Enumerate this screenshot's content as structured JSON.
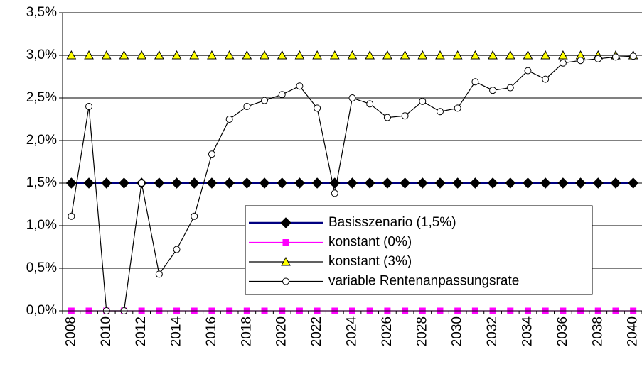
{
  "chart_data": {
    "type": "line",
    "categories": [
      "2008",
      null,
      "2010",
      null,
      "2012",
      null,
      "2014",
      null,
      "2016",
      null,
      "2018",
      null,
      "2020",
      null,
      "2022",
      null,
      "2024",
      null,
      "2026",
      null,
      "2028",
      null,
      "2030",
      null,
      "2032",
      null,
      "2034",
      null,
      "2036",
      null,
      "2038",
      null,
      "2040"
    ],
    "ylim": [
      0,
      3.5
    ],
    "yticks": [
      {
        "value": 0,
        "label": "0,0%"
      },
      {
        "value": 0.5,
        "label": "0,5%"
      },
      {
        "value": 1,
        "label": "1,0%"
      },
      {
        "value": 1.5,
        "label": "1,5%"
      },
      {
        "value": 2,
        "label": "2,0%"
      },
      {
        "value": 2.5,
        "label": "2,5%"
      },
      {
        "value": 3,
        "label": "3,0%"
      },
      {
        "value": 3.5,
        "label": "3,5%"
      }
    ],
    "grid": true,
    "series": [
      {
        "name": "Basisszenario (1,5%)",
        "color": "#000080",
        "marker": "diamond",
        "marker_fill": "#000000",
        "values": [
          1.5,
          1.5,
          1.5,
          1.5,
          1.5,
          1.5,
          1.5,
          1.5,
          1.5,
          1.5,
          1.5,
          1.5,
          1.5,
          1.5,
          1.5,
          1.5,
          1.5,
          1.5,
          1.5,
          1.5,
          1.5,
          1.5,
          1.5,
          1.5,
          1.5,
          1.5,
          1.5,
          1.5,
          1.5,
          1.5,
          1.5,
          1.5,
          1.5
        ]
      },
      {
        "name": "konstant (0%)",
        "color": "#ff00ff",
        "marker": "square",
        "marker_fill": "#ff00ff",
        "values": [
          0,
          0,
          0,
          0,
          0,
          0,
          0,
          0,
          0,
          0,
          0,
          0,
          0,
          0,
          0,
          0,
          0,
          0,
          0,
          0,
          0,
          0,
          0,
          0,
          0,
          0,
          0,
          0,
          0,
          0,
          0,
          0,
          0
        ]
      },
      {
        "name": "konstant (3%)",
        "color": "#000000",
        "marker": "triangle",
        "marker_fill": "#ffff00",
        "values": [
          3,
          3,
          3,
          3,
          3,
          3,
          3,
          3,
          3,
          3,
          3,
          3,
          3,
          3,
          3,
          3,
          3,
          3,
          3,
          3,
          3,
          3,
          3,
          3,
          3,
          3,
          3,
          3,
          3,
          3,
          3,
          3,
          3
        ]
      },
      {
        "name": "variable Rentenanpassungsrate",
        "color": "#000000",
        "marker": "circle",
        "marker_fill": "#ffffff",
        "values": [
          1.11,
          2.4,
          0,
          0,
          1.5,
          0.43,
          0.72,
          1.11,
          1.84,
          2.25,
          2.4,
          2.47,
          2.54,
          2.64,
          2.38,
          1.38,
          2.5,
          2.43,
          2.27,
          2.29,
          2.46,
          2.34,
          2.38,
          2.69,
          2.59,
          2.62,
          2.82,
          2.72,
          2.91,
          2.94,
          2.96,
          2.98,
          2.99
        ]
      }
    ]
  }
}
